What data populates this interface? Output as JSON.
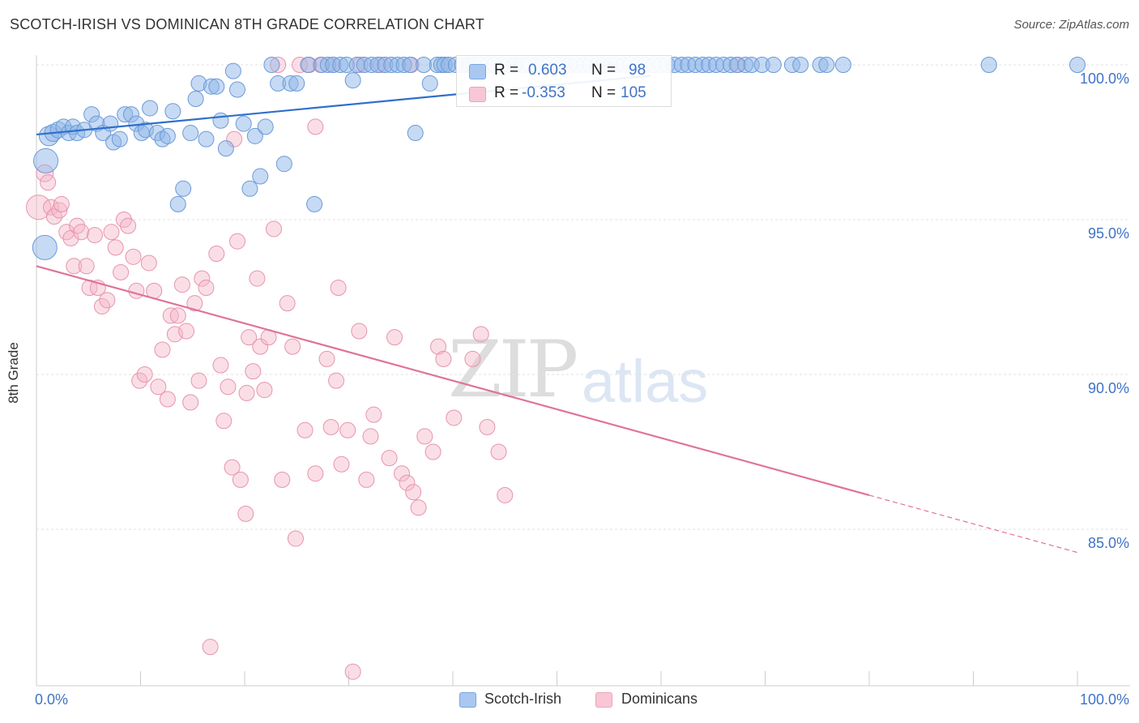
{
  "title": "SCOTCH-IRISH VS DOMINICAN 8TH GRADE CORRELATION CHART",
  "source": "Source: ZipAtlas.com",
  "watermark": {
    "zip": "ZIP",
    "atlas": "atlas"
  },
  "chart_data": {
    "type": "scatter",
    "title": "SCOTCH-IRISH VS DOMINICAN 8TH GRADE CORRELATION CHART",
    "xlabel": "",
    "ylabel": "8th Grade",
    "xlim": [
      0,
      100
    ],
    "ylim": [
      80.2,
      101.3
    ],
    "x_tick_labels": {
      "left": "0.0%",
      "right": "100.0%"
    },
    "y_ticks": [
      {
        "value": 100,
        "label": "100.0%"
      },
      {
        "value": 95,
        "label": "95.0%"
      },
      {
        "value": 90,
        "label": "90.0%"
      },
      {
        "value": 85,
        "label": "85.0%"
      }
    ],
    "grid": true,
    "legend_position": "top-center",
    "series": [
      {
        "name": "Scotch-Irish",
        "color": "#8fb6e8",
        "edge": "#6a9ad8",
        "line_color": "#2f6fcc",
        "R": "0.603",
        "N": "98",
        "trend": {
          "x0": 0,
          "y0": 97.75,
          "x1": 59,
          "y1": 99.65
        },
        "points": [
          [
            0.8,
            94.1,
            22
          ],
          [
            0.9,
            96.9,
            22
          ],
          [
            1.2,
            97.7,
            16
          ],
          [
            1.6,
            97.8,
            13
          ],
          [
            2.1,
            97.9,
            12
          ],
          [
            2.6,
            98.0,
            11
          ],
          [
            3.1,
            97.8,
            11
          ],
          [
            3.5,
            98.0,
            11
          ],
          [
            3.9,
            97.8,
            11
          ],
          [
            4.6,
            97.9,
            11
          ],
          [
            5.3,
            98.4,
            11
          ],
          [
            5.8,
            98.1,
            11
          ],
          [
            6.4,
            97.8,
            11
          ],
          [
            7.1,
            98.1,
            11
          ],
          [
            7.4,
            97.5,
            11
          ],
          [
            8.0,
            97.6,
            11
          ],
          [
            8.5,
            98.4,
            11
          ],
          [
            9.1,
            98.4,
            11
          ],
          [
            9.6,
            98.1,
            11
          ],
          [
            10.1,
            97.8,
            11
          ],
          [
            10.5,
            97.9,
            11
          ],
          [
            10.9,
            98.6,
            11
          ],
          [
            11.6,
            97.8,
            11
          ],
          [
            12.1,
            97.6,
            11
          ],
          [
            12.6,
            97.7,
            11
          ],
          [
            13.1,
            98.5,
            11
          ],
          [
            13.6,
            95.5,
            11
          ],
          [
            14.1,
            96.0,
            11
          ],
          [
            14.8,
            97.8,
            11
          ],
          [
            15.3,
            98.9,
            11
          ],
          [
            15.6,
            99.4,
            11
          ],
          [
            16.3,
            97.6,
            11
          ],
          [
            16.8,
            99.3,
            11
          ],
          [
            17.3,
            99.3,
            11
          ],
          [
            17.7,
            98.2,
            11
          ],
          [
            18.2,
            97.3,
            11
          ],
          [
            18.9,
            99.8,
            11
          ],
          [
            19.3,
            99.2,
            11
          ],
          [
            19.9,
            98.1,
            11
          ],
          [
            20.5,
            96.0,
            11
          ],
          [
            21.0,
            97.7,
            11
          ],
          [
            21.5,
            96.4,
            11
          ],
          [
            22.0,
            98.0,
            11
          ],
          [
            22.6,
            100.0,
            11
          ],
          [
            23.2,
            99.4,
            11
          ],
          [
            23.8,
            96.8,
            11
          ],
          [
            24.4,
            99.4,
            11
          ],
          [
            25.0,
            99.4,
            11
          ],
          [
            26.1,
            100.0,
            11
          ],
          [
            26.7,
            95.5,
            11
          ],
          [
            27.4,
            100.0,
            11
          ],
          [
            28.0,
            100.0,
            11
          ],
          [
            28.5,
            100.0,
            11
          ],
          [
            29.2,
            100.0,
            11
          ],
          [
            29.8,
            100.0,
            11
          ],
          [
            30.4,
            99.5,
            11
          ],
          [
            30.8,
            100.0,
            11
          ],
          [
            31.5,
            100.0,
            11
          ],
          [
            32.2,
            100.0,
            11
          ],
          [
            32.8,
            100.0,
            11
          ],
          [
            33.5,
            100.0,
            11
          ],
          [
            34.1,
            100.0,
            11
          ],
          [
            34.7,
            100.0,
            11
          ],
          [
            35.3,
            100.0,
            11
          ],
          [
            35.9,
            100.0,
            11
          ],
          [
            36.4,
            97.8,
            11
          ],
          [
            37.2,
            100.0,
            11
          ],
          [
            37.8,
            99.4,
            11
          ],
          [
            38.5,
            100.0,
            11
          ],
          [
            38.9,
            100.0,
            11
          ],
          [
            39.2,
            100.0,
            11
          ],
          [
            39.6,
            100.0,
            11
          ],
          [
            40.3,
            100.0,
            11
          ],
          [
            40.9,
            100.0,
            11
          ],
          [
            41.6,
            100.0,
            11
          ],
          [
            42.0,
            100.0,
            11
          ],
          [
            42.6,
            100.0,
            11
          ],
          [
            43.3,
            100.0,
            11
          ],
          [
            44.0,
            100.0,
            11
          ],
          [
            44.7,
            100.0,
            11
          ],
          [
            45.4,
            100.0,
            11
          ],
          [
            46.0,
            100.0,
            11
          ],
          [
            46.7,
            100.0,
            11
          ],
          [
            47.3,
            100.0,
            11
          ],
          [
            48.0,
            100.0,
            11
          ],
          [
            48.6,
            100.0,
            11
          ],
          [
            49.3,
            100.0,
            11
          ],
          [
            50.1,
            100.0,
            11
          ],
          [
            50.7,
            100.0,
            11
          ],
          [
            51.2,
            100.0,
            11
          ],
          [
            51.9,
            100.0,
            11
          ],
          [
            52.6,
            100.0,
            11
          ],
          [
            53.2,
            100.0,
            11
          ],
          [
            53.9,
            100.0,
            11
          ],
          [
            54.5,
            100.0,
            11
          ],
          [
            55.2,
            100.0,
            11
          ],
          [
            55.7,
            100.0,
            11
          ],
          [
            56.4,
            100.0,
            11
          ],
          [
            57.1,
            100.0,
            11
          ],
          [
            57.8,
            100.0,
            11
          ],
          [
            58.5,
            100.0,
            11
          ],
          [
            59.3,
            100.0,
            11
          ],
          [
            60.0,
            100.0,
            11
          ],
          [
            60.6,
            100.0,
            11
          ],
          [
            61.3,
            100.0,
            11
          ],
          [
            62.0,
            100.0,
            11
          ],
          [
            62.6,
            100.0,
            11
          ],
          [
            63.3,
            100.0,
            11
          ],
          [
            64.0,
            100.0,
            11
          ],
          [
            64.6,
            100.0,
            11
          ],
          [
            65.3,
            100.0,
            11
          ],
          [
            66.0,
            100.0,
            11
          ],
          [
            66.7,
            100.0,
            11
          ],
          [
            67.3,
            100.0,
            11
          ],
          [
            68.1,
            100.0,
            11
          ],
          [
            68.7,
            100.0,
            11
          ],
          [
            69.7,
            100.0,
            11
          ],
          [
            70.8,
            100.0,
            11
          ],
          [
            72.6,
            100.0,
            11
          ],
          [
            73.4,
            100.0,
            11
          ],
          [
            75.3,
            100.0,
            11
          ],
          [
            75.9,
            100.0,
            11
          ],
          [
            77.5,
            100.0,
            11
          ],
          [
            91.5,
            100.0,
            11
          ],
          [
            100.0,
            100.0,
            11
          ]
        ]
      },
      {
        "name": "Dominicans",
        "color": "#f4b6c8",
        "edge": "#e893ae",
        "line_color": "#e07399",
        "R": "-0.353",
        "N": "105",
        "trend": {
          "x0": 0,
          "y0": 93.5,
          "x1": 80,
          "y1": 86.1,
          "dash_to_x": 100,
          "dash_to_y": 84.25
        },
        "points": [
          [
            0.2,
            95.4,
            22
          ],
          [
            0.8,
            96.5,
            13
          ],
          [
            1.1,
            96.2,
            11
          ],
          [
            1.4,
            95.4,
            11
          ],
          [
            1.7,
            95.1,
            11
          ],
          [
            2.2,
            95.3,
            11
          ],
          [
            2.4,
            95.5,
            11
          ],
          [
            2.9,
            94.6,
            11
          ],
          [
            3.3,
            94.4,
            11
          ],
          [
            3.6,
            93.5,
            11
          ],
          [
            3.9,
            94.8,
            11
          ],
          [
            4.3,
            94.6,
            11
          ],
          [
            4.8,
            93.5,
            11
          ],
          [
            5.1,
            92.8,
            11
          ],
          [
            5.6,
            94.5,
            11
          ],
          [
            5.9,
            92.8,
            11
          ],
          [
            6.3,
            92.2,
            11
          ],
          [
            6.8,
            92.4,
            11
          ],
          [
            7.2,
            94.6,
            11
          ],
          [
            7.6,
            94.1,
            11
          ],
          [
            8.1,
            93.3,
            11
          ],
          [
            8.4,
            95.0,
            11
          ],
          [
            8.8,
            94.8,
            11
          ],
          [
            9.3,
            93.8,
            11
          ],
          [
            9.6,
            92.7,
            11
          ],
          [
            9.9,
            89.8,
            11
          ],
          [
            10.4,
            90.0,
            11
          ],
          [
            10.8,
            93.6,
            11
          ],
          [
            11.3,
            92.7,
            11
          ],
          [
            11.7,
            89.6,
            11
          ],
          [
            12.1,
            90.8,
            11
          ],
          [
            12.6,
            89.2,
            11
          ],
          [
            12.9,
            91.9,
            11
          ],
          [
            13.3,
            91.3,
            11
          ],
          [
            13.6,
            91.9,
            11
          ],
          [
            14.0,
            92.9,
            11
          ],
          [
            14.4,
            91.4,
            11
          ],
          [
            14.8,
            89.1,
            11
          ],
          [
            15.2,
            92.3,
            11
          ],
          [
            15.6,
            89.8,
            11
          ],
          [
            15.9,
            93.1,
            11
          ],
          [
            16.3,
            92.8,
            11
          ],
          [
            16.7,
            81.2,
            11
          ],
          [
            17.3,
            93.9,
            11
          ],
          [
            17.7,
            90.3,
            11
          ],
          [
            18.0,
            88.5,
            11
          ],
          [
            18.4,
            89.6,
            11
          ],
          [
            18.8,
            87.0,
            11
          ],
          [
            19.3,
            94.3,
            11
          ],
          [
            19.6,
            86.6,
            11
          ],
          [
            20.1,
            85.5,
            11
          ],
          [
            20.4,
            91.2,
            11
          ],
          [
            20.8,
            90.1,
            11
          ],
          [
            21.2,
            93.1,
            11
          ],
          [
            21.5,
            90.9,
            11
          ],
          [
            21.9,
            89.5,
            11
          ],
          [
            22.3,
            91.2,
            11
          ],
          [
            22.8,
            94.7,
            11
          ],
          [
            23.2,
            100.0,
            11
          ],
          [
            23.6,
            86.6,
            11
          ],
          [
            24.1,
            92.3,
            11
          ],
          [
            24.6,
            90.9,
            11
          ],
          [
            25.3,
            100.0,
            11
          ],
          [
            25.8,
            88.2,
            11
          ],
          [
            26.2,
            100.0,
            11
          ],
          [
            26.8,
            86.8,
            11
          ],
          [
            27.3,
            100.0,
            11
          ],
          [
            27.9,
            90.5,
            11
          ],
          [
            28.3,
            88.3,
            11
          ],
          [
            28.8,
            89.8,
            11
          ],
          [
            29.3,
            87.1,
            11
          ],
          [
            29.9,
            88.2,
            11
          ],
          [
            30.4,
            80.4,
            11
          ],
          [
            31.0,
            91.4,
            11
          ],
          [
            31.7,
            86.6,
            11
          ],
          [
            32.1,
            88.0,
            11
          ],
          [
            32.4,
            88.7,
            11
          ],
          [
            33.1,
            100.0,
            11
          ],
          [
            33.9,
            87.3,
            11
          ],
          [
            34.4,
            91.2,
            11
          ],
          [
            35.1,
            86.8,
            11
          ],
          [
            35.6,
            86.5,
            11
          ],
          [
            36.2,
            86.2,
            11
          ],
          [
            36.7,
            85.7,
            11
          ],
          [
            37.3,
            88.0,
            11
          ],
          [
            38.1,
            87.5,
            11
          ],
          [
            38.6,
            90.9,
            11
          ],
          [
            39.1,
            90.5,
            11
          ],
          [
            40.1,
            88.6,
            11
          ],
          [
            41.4,
            100.0,
            11
          ],
          [
            41.9,
            90.5,
            11
          ],
          [
            42.7,
            91.3,
            11
          ],
          [
            43.3,
            88.3,
            11
          ],
          [
            44.4,
            87.5,
            11
          ],
          [
            45.0,
            86.1,
            11
          ],
          [
            24.9,
            84.7,
            11
          ],
          [
            20.2,
            89.4,
            11
          ],
          [
            19.0,
            97.6,
            11
          ],
          [
            26.8,
            98.0,
            11
          ],
          [
            28.5,
            100.0,
            11
          ],
          [
            36.0,
            100.0,
            11
          ],
          [
            45.9,
            100.0,
            11
          ],
          [
            67.4,
            100.0,
            11
          ],
          [
            31.1,
            100.0,
            11
          ],
          [
            29.0,
            92.8,
            11
          ]
        ]
      }
    ]
  },
  "legend": {
    "r_label": "R =",
    "n_label": "N =",
    "rows": [
      {
        "r": "0.603",
        "n": "98",
        "color": "#a9c8f0",
        "edge": "#7aa6e0"
      },
      {
        "r": "-0.353",
        "n": "105",
        "color": "#f8c6d4",
        "edge": "#eca3bb"
      }
    ]
  },
  "bottom_legend": [
    {
      "label": "Scotch-Irish",
      "color": "#a9c8f0",
      "edge": "#7aa6e0"
    },
    {
      "label": "Dominicans",
      "color": "#f8c6d4",
      "edge": "#eca3bb"
    }
  ]
}
